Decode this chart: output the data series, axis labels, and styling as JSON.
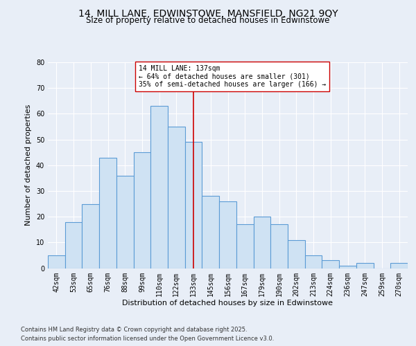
{
  "title1": "14, MILL LANE, EDWINSTOWE, MANSFIELD, NG21 9QY",
  "title2": "Size of property relative to detached houses in Edwinstowe",
  "xlabel": "Distribution of detached houses by size in Edwinstowe",
  "ylabel": "Number of detached properties",
  "footnote1": "Contains HM Land Registry data © Crown copyright and database right 2025.",
  "footnote2": "Contains public sector information licensed under the Open Government Licence v3.0.",
  "categories": [
    "42sqm",
    "53sqm",
    "65sqm",
    "76sqm",
    "88sqm",
    "99sqm",
    "110sqm",
    "122sqm",
    "133sqm",
    "145sqm",
    "156sqm",
    "167sqm",
    "179sqm",
    "190sqm",
    "202sqm",
    "213sqm",
    "224sqm",
    "236sqm",
    "247sqm",
    "259sqm",
    "270sqm"
  ],
  "values": [
    5,
    18,
    25,
    43,
    36,
    45,
    63,
    55,
    49,
    28,
    26,
    17,
    20,
    17,
    11,
    5,
    3,
    1,
    2,
    0,
    2
  ],
  "bar_color": "#cfe2f3",
  "bar_edge_color": "#5b9bd5",
  "bar_edge_width": 0.8,
  "vline_x_index": 8,
  "vline_color": "#cc0000",
  "annotation_text": "14 MILL LANE: 137sqm\n← 64% of detached houses are smaller (301)\n35% of semi-detached houses are larger (166) →",
  "annotation_box_color": "#ffffff",
  "annotation_box_edge": "#cc0000",
  "ylim": [
    0,
    80
  ],
  "yticks": [
    0,
    10,
    20,
    30,
    40,
    50,
    60,
    70,
    80
  ],
  "background_color": "#e8eef7",
  "plot_background": "#e8eef7",
  "grid_color": "#ffffff",
  "title1_fontsize": 10,
  "title2_fontsize": 8.5,
  "xlabel_fontsize": 8,
  "ylabel_fontsize": 8,
  "tick_fontsize": 7,
  "annot_fontsize": 7,
  "footnote_fontsize": 6
}
